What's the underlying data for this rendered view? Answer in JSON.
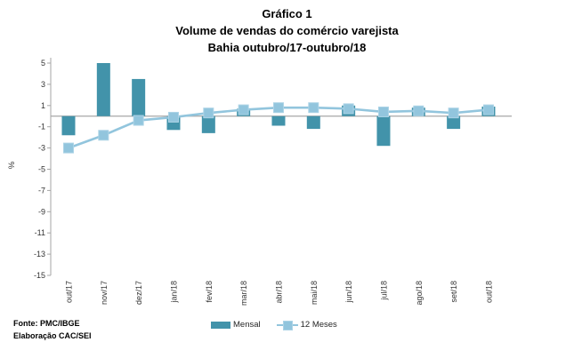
{
  "title": {
    "line1": "Gráfico 1",
    "line2": "Volume de vendas do comércio varejista",
    "line3": "Bahia outubro/17-outubro/18"
  },
  "chart_data": {
    "type": "bar",
    "subtype": "bar-and-line-combo",
    "title": "Gráfico 1 - Volume de vendas do comércio varejista - Bahia outubro/17-outubro/18",
    "categories": [
      "out/17",
      "nov/17",
      "dez/17",
      "jan/18",
      "fev/18",
      "mar/18",
      "abr/18",
      "mai/18",
      "jun/18",
      "jul/18",
      "ago/18",
      "set/18",
      "out/18"
    ],
    "series": [
      {
        "name": "Mensal",
        "type": "bar",
        "color": "#4293AA",
        "values": [
          -1.8,
          5.0,
          3.5,
          -1.3,
          -1.6,
          0.7,
          -0.9,
          -1.2,
          1.0,
          -2.8,
          0.8,
          -1.2,
          0.9
        ]
      },
      {
        "name": "12 Meses",
        "type": "line",
        "color": "#92C5DD",
        "marker_border": "#ACD3E6",
        "values": [
          -3.0,
          -1.8,
          -0.4,
          -0.1,
          0.3,
          0.6,
          0.8,
          0.8,
          0.7,
          0.4,
          0.5,
          0.3,
          0.6
        ]
      }
    ],
    "xlabel": "",
    "ylabel": "%",
    "ylim": [
      -15,
      5
    ],
    "yticks": [
      5,
      3,
      1,
      -1,
      -3,
      -5,
      -7,
      -9,
      -11,
      -13,
      -15
    ],
    "grid": "zero-line-only",
    "legend_position": "bottom-center",
    "colors": {
      "zero_line": "#A6A6A6",
      "axis_line": "#A6A6A6",
      "tick_text": "#333333"
    }
  },
  "footer": {
    "line1": "Fonte: PMC/IBGE",
    "line2": "Elaboração CAC/SEI"
  }
}
